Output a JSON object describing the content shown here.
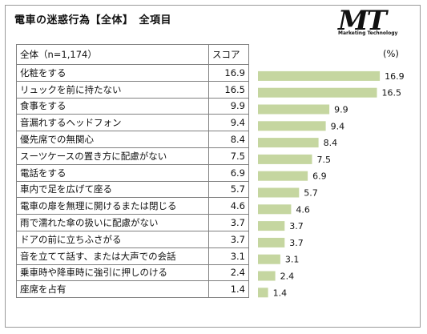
{
  "title": "電車の迷惑行為【全体】　全項目",
  "logo": {
    "mark": "MT",
    "text": "Marketing Technology"
  },
  "table": {
    "header_label": "全体（n=1,174）",
    "header_value": "スコア",
    "unit": "(%)"
  },
  "chart_data": {
    "type": "bar",
    "orientation": "horizontal",
    "categories": [
      "化粧をする",
      "リュックを前に持たない",
      "食事をする",
      "音漏れするヘッドフォン",
      "優先席での無関心",
      "スーツケースの置き方に配慮がない",
      "電話をする",
      "車内で足を広げて座る",
      "電車の扉を無理に開けるまたは閉じる",
      "雨で濡れた傘の扱いに配慮がない",
      "ドアの前に立ちふさがる",
      "音を立てて話す、または大声での会話",
      "乗車時や降車時に強引に押しのける",
      "座席を占有"
    ],
    "values": [
      16.9,
      16.5,
      9.9,
      9.4,
      8.4,
      7.5,
      6.9,
      5.7,
      4.6,
      3.7,
      3.7,
      3.1,
      2.4,
      1.4
    ],
    "value_labels": [
      "16.9",
      "16.5",
      "9.9",
      "9.4",
      "8.4",
      "7.5",
      "6.9",
      "5.7",
      "4.6",
      "3.7",
      "3.7",
      "3.1",
      "2.4",
      "1.4"
    ],
    "xlim": [
      0,
      20
    ],
    "bar_color": "#c5d6a0",
    "grid": false,
    "legend": "none"
  }
}
